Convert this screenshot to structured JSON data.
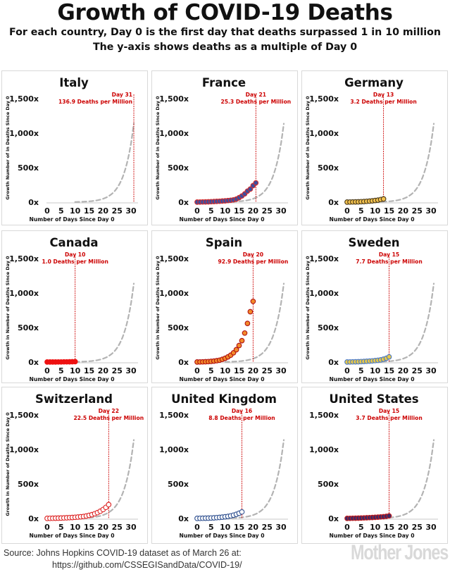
{
  "header": {
    "title": "Growth of COVID-19 Deaths",
    "subtitle1": "For each country, Day 0 is the first day that deaths surpassed 1 in 10 million",
    "subtitle2": "The y-axis shows deaths as a multiple of Day 0"
  },
  "footer": {
    "source_line1": "Source: Johns Hopkins COVID-19 dataset as of March 26 at:",
    "source_line2": "https://github.com/CSSEGISandData/COVID-19/",
    "logo_text": "Mother Jones"
  },
  "colors": {
    "marker_line": "#cc0000",
    "trend_line": "#b3b3b3",
    "panel_border": "#d9d9d9"
  },
  "chart_data": [
    {
      "type": "scatter",
      "title": "Italy",
      "xlabel": "Number of Days Since Day 0",
      "ylabel": "Growth Number of in Deaths Since Day 0",
      "xlim": [
        0,
        32
      ],
      "ylim": [
        0,
        1500
      ],
      "x_ticks": [
        "0",
        "5",
        "10",
        "15",
        "20",
        "25",
        "30"
      ],
      "y_ticks": [
        "0x",
        "500x",
        "1,000x",
        "1,500x"
      ],
      "marker_day": 31,
      "annotation_day": "Day 31",
      "annotation_value": "136.9 Deaths per Million",
      "point_fill": "#ffffff",
      "point_stroke": "#ffffff",
      "x": [],
      "y": []
    },
    {
      "type": "scatter",
      "title": "France",
      "xlabel": "Number of Days Since Day 0",
      "ylabel": "Growth Number of in Deaths Since Day 0",
      "xlim": [
        0,
        32
      ],
      "ylim": [
        0,
        1500
      ],
      "x_ticks": [
        "0",
        "5",
        "10",
        "15",
        "20",
        "25",
        "30"
      ],
      "y_ticks": [
        "0x",
        "500x",
        "1,000x",
        "1,500x"
      ],
      "marker_day": 21,
      "annotation_day": "Day 21",
      "annotation_value": "25.3 Deaths per Million",
      "point_fill": "#3d4f9e",
      "point_stroke": "#d42c2c",
      "x": [
        0,
        1,
        2,
        3,
        4,
        5,
        6,
        7,
        8,
        9,
        10,
        11,
        12,
        13,
        14,
        15,
        16,
        17,
        18,
        19,
        20,
        21
      ],
      "y": [
        1,
        2,
        3,
        4,
        5,
        7,
        9,
        11,
        13,
        16,
        19,
        23,
        28,
        34,
        45,
        65,
        90,
        120,
        160,
        190,
        240,
        280
      ]
    },
    {
      "type": "scatter",
      "title": "Germany",
      "xlabel": "Number of Days Since Day 0",
      "ylabel": "Growth Number of in Deaths Since Day 0",
      "xlim": [
        0,
        32
      ],
      "ylim": [
        0,
        1500
      ],
      "x_ticks": [
        "0",
        "5",
        "10",
        "15",
        "20",
        "25",
        "30"
      ],
      "y_ticks": [
        "0x",
        "500x",
        "1,000x",
        "1,500x"
      ],
      "marker_day": 13,
      "annotation_day": "Day 13",
      "annotation_value": "3.2 Deaths per Million",
      "point_fill": "#f2c14e",
      "point_stroke": "#4a3a1a",
      "x": [
        0,
        1,
        2,
        3,
        4,
        5,
        6,
        7,
        8,
        9,
        10,
        11,
        12,
        13
      ],
      "y": [
        1,
        2,
        3,
        4,
        5,
        7,
        9,
        12,
        15,
        19,
        24,
        30,
        38,
        47
      ]
    },
    {
      "type": "scatter",
      "title": "Canada",
      "xlabel": "Number of Days Since Day 0",
      "ylabel": "Growth in Number of Deaths Since Day 0",
      "xlim": [
        0,
        32
      ],
      "ylim": [
        0,
        1500
      ],
      "x_ticks": [
        "0",
        "5",
        "10",
        "15",
        "20",
        "25",
        "30"
      ],
      "y_ticks": [
        "0x",
        "500x",
        "1,000x",
        "1,500x"
      ],
      "marker_day": 10,
      "annotation_day": "Day 10",
      "annotation_value": "1.0 Deaths per Million",
      "point_fill": "#ee1111",
      "point_stroke": "#ee1111",
      "x": [
        0,
        1,
        2,
        3,
        4,
        5,
        6,
        7,
        8,
        9,
        10
      ],
      "y": [
        1,
        1,
        1,
        1,
        2,
        2,
        3,
        3,
        4,
        5,
        6
      ]
    },
    {
      "type": "scatter",
      "title": "Spain",
      "xlabel": "Number of Days Since Day 0",
      "ylabel": "Growth in Number of Deaths Since Day 0",
      "xlim": [
        0,
        32
      ],
      "ylim": [
        0,
        1500
      ],
      "x_ticks": [
        "0",
        "5",
        "10",
        "15",
        "20",
        "25",
        "30"
      ],
      "y_ticks": [
        "0x",
        "500x",
        "1,000x",
        "1,500x"
      ],
      "marker_day": 20,
      "annotation_day": "Day 20",
      "annotation_value": "92.9 Deaths per Million",
      "point_fill": "#f28a2a",
      "point_stroke": "#b01010",
      "x": [
        0,
        1,
        2,
        3,
        4,
        5,
        6,
        7,
        8,
        9,
        10,
        11,
        12,
        13,
        14,
        15,
        16,
        17,
        18,
        19,
        20
      ],
      "y": [
        1,
        2,
        3,
        5,
        7,
        10,
        14,
        20,
        28,
        40,
        55,
        75,
        100,
        135,
        180,
        240,
        310,
        420,
        560,
        730,
        880
      ]
    },
    {
      "type": "scatter",
      "title": "Sweden",
      "xlabel": "Number of Days Since Day 0",
      "ylabel": "Growth in Number of Deaths Since Day 0",
      "xlim": [
        0,
        32
      ],
      "ylim": [
        0,
        1500
      ],
      "x_ticks": [
        "0",
        "5",
        "10",
        "15",
        "20",
        "25",
        "30"
      ],
      "y_ticks": [
        "0x",
        "500x",
        "1,000x",
        "1,500x"
      ],
      "marker_day": 15,
      "annotation_day": "Day 15",
      "annotation_value": "7.7 Deaths per Million",
      "point_fill": "#e6c84a",
      "point_stroke": "#4a79c8",
      "x": [
        0,
        1,
        2,
        3,
        4,
        5,
        6,
        7,
        8,
        9,
        10,
        11,
        12,
        13,
        14,
        15
      ],
      "y": [
        1,
        2,
        3,
        4,
        5,
        7,
        9,
        11,
        14,
        17,
        21,
        26,
        32,
        42,
        55,
        75
      ]
    },
    {
      "type": "scatter",
      "title": "Switzerland",
      "xlabel": "Number of Days Since Day 0",
      "ylabel": "Growth in Number of Deaths Since Day 0",
      "xlim": [
        0,
        32
      ],
      "ylim": [
        0,
        1500
      ],
      "x_ticks": [
        "0",
        "5",
        "10",
        "15",
        "20",
        "25",
        "30"
      ],
      "y_ticks": [
        "0x",
        "500x",
        "1,000x",
        "1,500x"
      ],
      "marker_day": 22,
      "annotation_day": "Day 22",
      "annotation_value": "22.5 Deaths per Million",
      "point_fill": "#ffffff",
      "point_stroke": "#dd2222",
      "x": [
        0,
        1,
        2,
        3,
        4,
        5,
        6,
        7,
        8,
        9,
        10,
        11,
        12,
        13,
        14,
        15,
        16,
        17,
        18,
        19,
        20,
        21,
        22
      ],
      "y": [
        1,
        2,
        3,
        4,
        5,
        6,
        8,
        10,
        12,
        14,
        17,
        20,
        24,
        29,
        36,
        45,
        55,
        68,
        85,
        105,
        130,
        160,
        200
      ]
    },
    {
      "type": "scatter",
      "title": "United Kingdom",
      "xlabel": "Number of Days Since Day 0",
      "ylabel": "",
      "xlim": [
        0,
        32
      ],
      "ylim": [
        0,
        1500
      ],
      "x_ticks": [
        "0",
        "5",
        "10",
        "15",
        "20",
        "25",
        "30"
      ],
      "y_ticks": [
        "0x",
        "500x",
        "1,000x",
        "1,500x"
      ],
      "marker_day": 16,
      "annotation_day": "Day 16",
      "annotation_value": "8.8 Deaths per Million",
      "point_fill": "#ffffff",
      "point_stroke": "#2e4f8f",
      "x": [
        0,
        1,
        2,
        3,
        4,
        5,
        6,
        7,
        8,
        9,
        10,
        11,
        12,
        13,
        14,
        15,
        16
      ],
      "y": [
        1,
        2,
        3,
        4,
        5,
        7,
        9,
        12,
        15,
        19,
        24,
        30,
        38,
        48,
        60,
        75,
        95
      ]
    },
    {
      "type": "scatter",
      "title": "United States",
      "xlabel": "Number of Days Since Day 0",
      "ylabel": "",
      "xlim": [
        0,
        32
      ],
      "ylim": [
        0,
        1500
      ],
      "x_ticks": [
        "0",
        "5",
        "10",
        "15",
        "20",
        "25",
        "30"
      ],
      "y_ticks": [
        "0x",
        "500x",
        "1,000x",
        "1,500x"
      ],
      "marker_day": 15,
      "annotation_day": "Day 15",
      "annotation_value": "3.7 Deaths per Million",
      "point_fill": "#3d2a66",
      "point_stroke": "#c41d1d",
      "x": [
        0,
        1,
        2,
        3,
        4,
        5,
        6,
        7,
        8,
        9,
        10,
        11,
        12,
        13,
        14,
        15
      ],
      "y": [
        1,
        2,
        3,
        4,
        5,
        6,
        8,
        10,
        12,
        14,
        16,
        19,
        22,
        26,
        31,
        38
      ]
    }
  ]
}
